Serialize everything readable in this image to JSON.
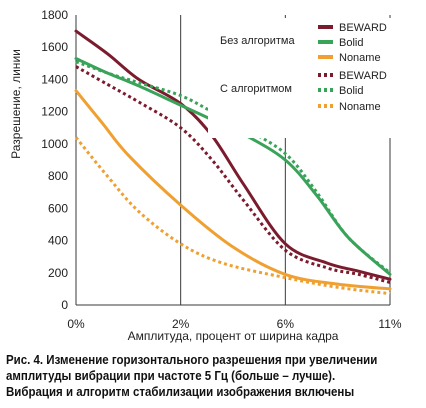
{
  "chart_data": {
    "type": "line",
    "xlabel": "Амплитуда, процент от ширина кадра",
    "ylabel": "Разрешение, линии",
    "x_ticks": [
      "0%",
      "2%",
      "6%",
      "11%"
    ],
    "x_positions": [
      0,
      1,
      2,
      3
    ],
    "ylim": [
      0,
      1800
    ],
    "y_ticks": [
      0,
      200,
      400,
      600,
      800,
      1000,
      1200,
      1400,
      1600,
      1800
    ],
    "grid": "vertical",
    "legend_groups": [
      {
        "title": "Без алгоритма",
        "style": "solid",
        "entries": [
          "BEWARD",
          "Bolid",
          "Noname"
        ]
      },
      {
        "title": "С алгоритмом",
        "style": "dotted",
        "entries": [
          "BEWARD",
          "Bolid",
          "Noname"
        ]
      }
    ],
    "colors": {
      "BEWARD": "#7b1c2e",
      "Bolid": "#3aa35a",
      "Noname": "#f0a030"
    },
    "series": [
      {
        "name": "BEWARD",
        "group": "Без алгоритма",
        "style": "solid",
        "color": "#7b1c2e",
        "points": [
          [
            0,
            1700
          ],
          [
            0.3,
            1560
          ],
          [
            0.6,
            1400
          ],
          [
            1,
            1250
          ],
          [
            1.3,
            1050
          ],
          [
            1.6,
            750
          ],
          [
            2,
            380
          ],
          [
            2.4,
            260
          ],
          [
            2.7,
            210
          ],
          [
            3,
            160
          ]
        ]
      },
      {
        "name": "Bolid",
        "group": "Без алгоритма",
        "style": "solid",
        "color": "#3aa35a",
        "points": [
          [
            0,
            1530
          ],
          [
            0.3,
            1440
          ],
          [
            0.6,
            1360
          ],
          [
            1,
            1240
          ],
          [
            1.3,
            1150
          ],
          [
            1.6,
            1060
          ],
          [
            2,
            900
          ],
          [
            2.3,
            680
          ],
          [
            2.6,
            420
          ],
          [
            3,
            190
          ]
        ]
      },
      {
        "name": "Noname",
        "group": "Без алгоритма",
        "style": "solid",
        "color": "#f0a030",
        "points": [
          [
            0,
            1330
          ],
          [
            0.25,
            1130
          ],
          [
            0.5,
            930
          ],
          [
            1,
            620
          ],
          [
            1.5,
            360
          ],
          [
            2,
            190
          ],
          [
            2.5,
            130
          ],
          [
            3,
            100
          ]
        ]
      },
      {
        "name": "BEWARD",
        "group": "С алгоритмом",
        "style": "dotted",
        "color": "#7b1c2e",
        "points": [
          [
            0,
            1480
          ],
          [
            0.3,
            1370
          ],
          [
            0.6,
            1260
          ],
          [
            1,
            1100
          ],
          [
            1.3,
            900
          ],
          [
            1.6,
            650
          ],
          [
            2,
            340
          ],
          [
            2.4,
            230
          ],
          [
            2.7,
            190
          ],
          [
            3,
            140
          ]
        ]
      },
      {
        "name": "Bolid",
        "group": "С алгоритмом",
        "style": "dotted",
        "color": "#3aa35a",
        "points": [
          [
            0,
            1510
          ],
          [
            0.3,
            1440
          ],
          [
            0.6,
            1380
          ],
          [
            1,
            1300
          ],
          [
            1.3,
            1200
          ],
          [
            1.6,
            1100
          ],
          [
            2,
            940
          ],
          [
            2.3,
            700
          ],
          [
            2.6,
            420
          ],
          [
            3,
            200
          ]
        ]
      },
      {
        "name": "Noname",
        "group": "С алгоритмом",
        "style": "dotted",
        "color": "#f0a030",
        "points": [
          [
            0,
            1040
          ],
          [
            0.3,
            800
          ],
          [
            0.6,
            580
          ],
          [
            1,
            380
          ],
          [
            1.4,
            260
          ],
          [
            2,
            170
          ],
          [
            2.5,
            110
          ],
          [
            3,
            70
          ]
        ]
      }
    ]
  },
  "caption": {
    "line1": "Рис. 4. Изменение горизонтального разрешения при увеличении",
    "line2": "амплитуды вибрации при частоте 5 Гц (больше – лучше).",
    "line3": "Вибрация и алгоритм стабилизации изображения включены"
  }
}
